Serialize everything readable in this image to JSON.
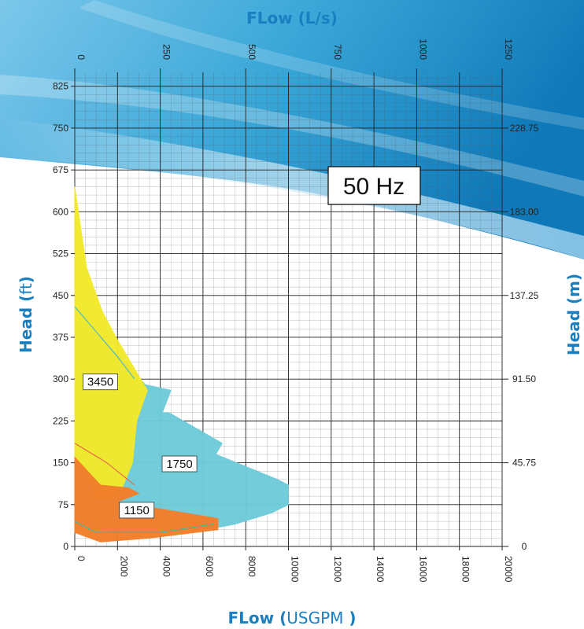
{
  "chart_data": {
    "type": "area",
    "frequency_label": "50 Hz",
    "x_bottom": {
      "label_bold": "FLow (",
      "label_unit": "USGPM",
      "label_close": "  )",
      "range": [
        0,
        20000
      ],
      "ticks": [
        "0",
        "2000",
        "4000",
        "6000",
        "8000",
        "10000",
        "12000",
        "14000",
        "16000",
        "18000",
        "20000"
      ]
    },
    "x_top": {
      "label": "FLow (L/s)",
      "range": [
        0,
        1250
      ],
      "ticks": [
        "0",
        "250",
        "500",
        "750",
        "1000",
        "1250"
      ]
    },
    "y_left": {
      "label_bold": "Head (",
      "label_unit": "ft",
      "label_close": ")",
      "range": [
        0,
        850
      ],
      "ticks": [
        "0",
        "75",
        "150",
        "225",
        "300",
        "375",
        "450",
        "525",
        "600",
        "675",
        "750",
        "825"
      ]
    },
    "y_right": {
      "label": "Head (m)",
      "ticks": [
        "0",
        "45.75",
        "91.50",
        "137.25",
        "183.00",
        "228.75"
      ]
    },
    "grid": true,
    "series": [
      {
        "name": "1750",
        "color": "#6fcbd8",
        "polygon": [
          [
            0,
            430
          ],
          [
            1300,
            370
          ],
          [
            2400,
            330
          ],
          [
            3300,
            290
          ],
          [
            4500,
            280
          ],
          [
            4100,
            240
          ],
          [
            4400,
            240
          ],
          [
            6900,
            185
          ],
          [
            6600,
            165
          ],
          [
            9500,
            120
          ],
          [
            10000,
            110
          ],
          [
            10000,
            75
          ],
          [
            9200,
            60
          ],
          [
            7500,
            40
          ],
          [
            6800,
            35
          ],
          [
            2500,
            25
          ],
          [
            1000,
            30
          ],
          [
            0,
            55
          ]
        ]
      },
      {
        "name": "3450",
        "color": "#f2ea2b",
        "polygon": [
          [
            0,
            645
          ],
          [
            550,
            500
          ],
          [
            1300,
            420
          ],
          [
            2000,
            370
          ],
          [
            3400,
            280
          ],
          [
            2900,
            225
          ],
          [
            2700,
            150
          ],
          [
            2000,
            85
          ],
          [
            1000,
            85
          ],
          [
            500,
            135
          ],
          [
            0,
            150
          ]
        ]
      },
      {
        "name": "1150",
        "color": "#f27e2a",
        "polygon": [
          [
            0,
            160
          ],
          [
            1200,
            110
          ],
          [
            2500,
            105
          ],
          [
            3000,
            95
          ],
          [
            2000,
            80
          ],
          [
            6700,
            50
          ],
          [
            6700,
            30
          ],
          [
            3500,
            15
          ],
          [
            1200,
            8
          ],
          [
            0,
            25
          ]
        ]
      }
    ]
  }
}
